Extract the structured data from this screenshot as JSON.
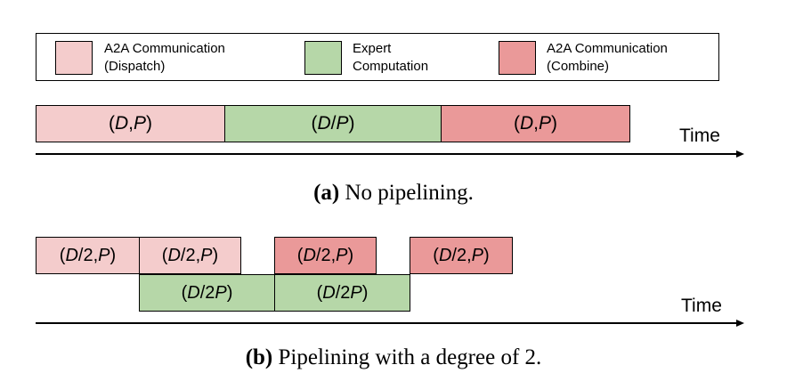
{
  "colors": {
    "dispatch": "#f4cccc",
    "expert": "#b6d7a8",
    "combine": "#ea9999"
  },
  "legend": {
    "dispatch": {
      "line1": "A2A Communication",
      "line2": "(Dispatch)"
    },
    "expert": {
      "line1": "Expert",
      "line2": "Computation"
    },
    "combine": {
      "line1": "A2A Communication",
      "line2": "(Combine)"
    }
  },
  "panel_a": {
    "blocks": [
      {
        "open": "(",
        "v1": "D",
        "sep": ", ",
        "v2": "P",
        "close": ")"
      },
      {
        "open": "(",
        "v1": "D",
        "sep": "/",
        "v2": "P",
        "close": ")"
      },
      {
        "open": "(",
        "v1": "D",
        "sep": ", ",
        "v2": "P",
        "close": ")"
      }
    ],
    "time_label": "Time",
    "caption_label": "(a)",
    "caption_text": " No pipelining."
  },
  "panel_b": {
    "top_row": [
      {
        "open": "(",
        "v1": "D",
        "mid": "/2, ",
        "v2": "P",
        "close": ")"
      },
      {
        "open": "(",
        "v1": "D",
        "mid": "/2, ",
        "v2": "P",
        "close": ")"
      },
      {
        "open": "(",
        "v1": "D",
        "mid": "/2, ",
        "v2": "P",
        "close": ")"
      },
      {
        "open": "(",
        "v1": "D",
        "mid": "/2, ",
        "v2": "P",
        "close": ")"
      }
    ],
    "bottom_row": [
      {
        "open": "(",
        "v1": "D",
        "mid": "/2",
        "v2": "P",
        "close": ")"
      },
      {
        "open": "(",
        "v1": "D",
        "mid": "/2",
        "v2": "P",
        "close": ")"
      }
    ],
    "time_label": "Time",
    "caption_label": "(b)",
    "caption_text": " Pipelining with a degree of 2."
  }
}
